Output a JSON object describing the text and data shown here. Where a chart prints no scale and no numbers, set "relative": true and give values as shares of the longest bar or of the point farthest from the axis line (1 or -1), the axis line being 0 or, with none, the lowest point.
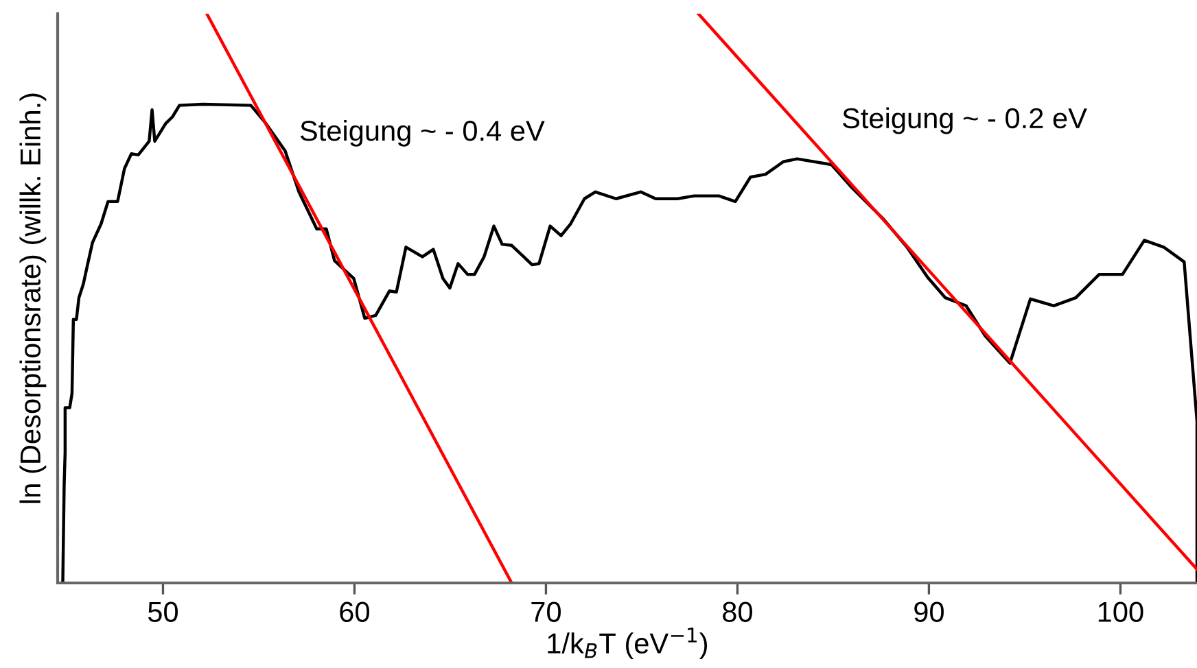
{
  "chart_data": {
    "type": "line",
    "xlabel": "1/k$_{B}$T (eV$^{−1}$)",
    "ylabel": "ln (Desorptionsrate) (willk. Einh.)",
    "relative": true,
    "xlim": [
      44.5,
      104
    ],
    "xticks": [
      50,
      60,
      70,
      80,
      90,
      100
    ],
    "grid": false,
    "legend": false,
    "marker": "none",
    "line_style": "solid",
    "series": [
      {
        "color": "#000000",
        "x": [
          44.77,
          44.84,
          44.89,
          44.89,
          45.13,
          45.25,
          45.32,
          45.48,
          45.61,
          45.84,
          46.06,
          46.32,
          46.77,
          47.13,
          47.63,
          47.99,
          48.35,
          48.71,
          49.28,
          49.43,
          49.57,
          50.14,
          50.5,
          50.86,
          52.08,
          54.59,
          55.38,
          56.38,
          57.1,
          58.03,
          58.53,
          58.96,
          59.96,
          60.54,
          61.11,
          61.83,
          62.19,
          62.69,
          63.55,
          64.12,
          64.62,
          64.98,
          65.41,
          65.91,
          66.27,
          66.77,
          67.28,
          67.71,
          68.21,
          69.28,
          69.64,
          70.22,
          70.79,
          71.29,
          72.01,
          72.58,
          73.66,
          74.95,
          75.73,
          76.88,
          77.74,
          79.03,
          79.89,
          80.68,
          81.47,
          82.4,
          83.12,
          84.91,
          85.99,
          87.63,
          88.85,
          89.93,
          90.86,
          91.94,
          92.94,
          94.23,
          95.3,
          96.52,
          97.67,
          98.89,
          100.11,
          101.25,
          102.26,
          103.33,
          104.0,
          104.0
        ],
        "values": [
          0.005,
          0.173,
          0.229,
          0.308,
          0.308,
          0.333,
          0.463,
          0.463,
          0.501,
          0.525,
          0.559,
          0.598,
          0.631,
          0.67,
          0.67,
          0.728,
          0.754,
          0.752,
          0.776,
          0.831,
          0.776,
          0.807,
          0.819,
          0.839,
          0.841,
          0.839,
          0.807,
          0.759,
          0.687,
          0.622,
          0.622,
          0.566,
          0.535,
          0.465,
          0.47,
          0.513,
          0.511,
          0.59,
          0.573,
          0.586,
          0.535,
          0.518,
          0.561,
          0.542,
          0.542,
          0.573,
          0.627,
          0.595,
          0.593,
          0.559,
          0.561,
          0.627,
          0.61,
          0.631,
          0.675,
          0.687,
          0.675,
          0.687,
          0.675,
          0.675,
          0.68,
          0.68,
          0.67,
          0.713,
          0.718,
          0.74,
          0.745,
          0.735,
          0.694,
          0.639,
          0.59,
          0.537,
          0.501,
          0.487,
          0.434,
          0.386,
          0.499,
          0.487,
          0.501,
          0.542,
          0.542,
          0.602,
          0.59,
          0.564,
          0.284,
          0.0
        ]
      },
      {
        "color": "#ff0000",
        "x": [
          52.29,
          68.21
        ],
        "values": [
          1.0,
          0.0
        ]
      },
      {
        "color": "#ff0000",
        "x": [
          77.96,
          104.0
        ],
        "values": [
          1.0,
          0.024
        ]
      }
    ],
    "annotations": [
      "Steigung ~ - 0.4 eV",
      "Steigung ~ - 0.2 eV"
    ]
  }
}
